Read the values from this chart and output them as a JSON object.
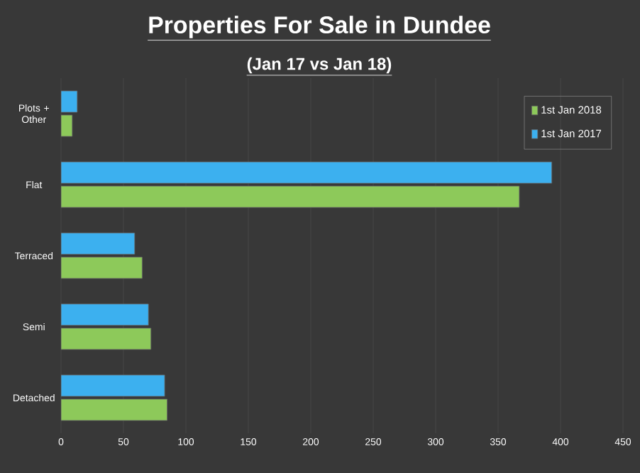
{
  "chart_data": {
    "type": "bar",
    "orientation": "horizontal",
    "title": "Properties For Sale in Dundee",
    "subtitle": "(Jan 17 vs Jan 18)",
    "categories": [
      "Plots + Other",
      "Flat",
      "Terraced",
      "Semi",
      "Detached"
    ],
    "series": [
      {
        "name": "1st Jan 2018",
        "color": "#8dc95a",
        "values": [
          9,
          367,
          65,
          72,
          85
        ]
      },
      {
        "name": "1st Jan 2017",
        "color": "#3cb0ef",
        "values": [
          13,
          393,
          59,
          70,
          83
        ]
      }
    ],
    "xlim": [
      0,
      450
    ],
    "xticks": [
      0,
      50,
      100,
      150,
      200,
      250,
      300,
      350,
      400,
      450
    ],
    "grid": "x",
    "legend": "top right"
  }
}
